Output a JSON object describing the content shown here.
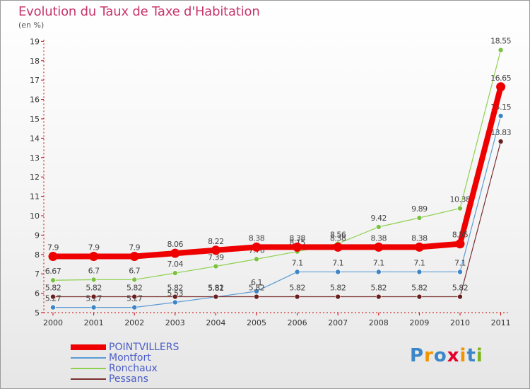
{
  "title": "Evolution du Taux de Taxe d'Habitation",
  "subtitle": "(en %)",
  "logo": {
    "text": "Proxiti",
    "letters": [
      "P",
      "r",
      "o",
      "x",
      "i",
      "t",
      "i"
    ],
    "colors": [
      "#3a86c8",
      "#f29400",
      "#3a86c8",
      "#e4002b",
      "#f29400",
      "#3a86c8",
      "#7cb518"
    ]
  },
  "chart_data": {
    "type": "line",
    "x": [
      "2000",
      "2001",
      "2002",
      "2003",
      "2004",
      "2005",
      "2006",
      "2007",
      "2008",
      "2009",
      "2010",
      "2011"
    ],
    "ylim": [
      5,
      19
    ],
    "yticks": [
      5,
      6,
      7,
      8,
      9,
      10,
      11,
      12,
      13,
      14,
      15,
      16,
      17,
      18,
      19
    ],
    "grid": false,
    "legend_position": "bottom-left",
    "series": [
      {
        "name": "Ronchaux",
        "color": "#8fd14f",
        "point_color": "#7cc242",
        "width": 1.2,
        "marker": 3.5,
        "values": [
          6.67,
          6.7,
          6.7,
          7.04,
          7.39,
          7.76,
          8.15,
          8.56,
          9.42,
          9.89,
          10.38,
          18.55
        ],
        "labels": [
          "6.67",
          "6.7",
          "6.7",
          "7.04",
          "7.39",
          "7.76",
          "8.15",
          "8.56",
          "9.42",
          "9.89",
          "10.38",
          "18.55"
        ]
      },
      {
        "name": "Montfort",
        "color": "#5b9bd5",
        "point_color": "#3d85c6",
        "width": 1.2,
        "marker": 3.5,
        "values": [
          5.27,
          5.27,
          5.27,
          5.53,
          5.81,
          6.1,
          7.1,
          7.1,
          7.1,
          7.1,
          7.1,
          15.15
        ],
        "labels": [
          "5.27",
          "5.27",
          "5.27",
          "5.53",
          "5.81",
          "6.1",
          "7.1",
          "7.1",
          "7.1",
          "7.1",
          "7.1",
          "15.15"
        ]
      },
      {
        "name": "Pessans",
        "color": "#7a2e2e",
        "point_color": "#6a1f1f",
        "width": 1.2,
        "marker": 3.5,
        "values": [
          5.82,
          5.82,
          5.82,
          5.82,
          5.82,
          5.82,
          5.82,
          5.82,
          5.82,
          5.82,
          5.82,
          13.83
        ],
        "labels": [
          "5.82",
          "5.82",
          "5.82",
          "5.82",
          "5.82",
          "5.82",
          "5.82",
          "5.82",
          "5.82",
          "5.82",
          "5.82",
          "13.83"
        ]
      },
      {
        "name": "POINTVILLERS",
        "color": "#ee0000",
        "point_color": "#ee0000",
        "width": 8,
        "marker": 6.5,
        "values": [
          7.9,
          7.9,
          7.9,
          8.06,
          8.22,
          8.38,
          8.38,
          8.38,
          8.38,
          8.38,
          8.55,
          16.65
        ],
        "labels": [
          "7.9",
          "7.9",
          "7.9",
          "8.06",
          "8.22",
          "8.38",
          "8.38",
          "8.38",
          "8.38",
          "8.38",
          "8.55",
          "16.65"
        ]
      }
    ],
    "legend_order": [
      "POINTVILLERS",
      "Montfort",
      "Ronchaux",
      "Pessans"
    ]
  }
}
